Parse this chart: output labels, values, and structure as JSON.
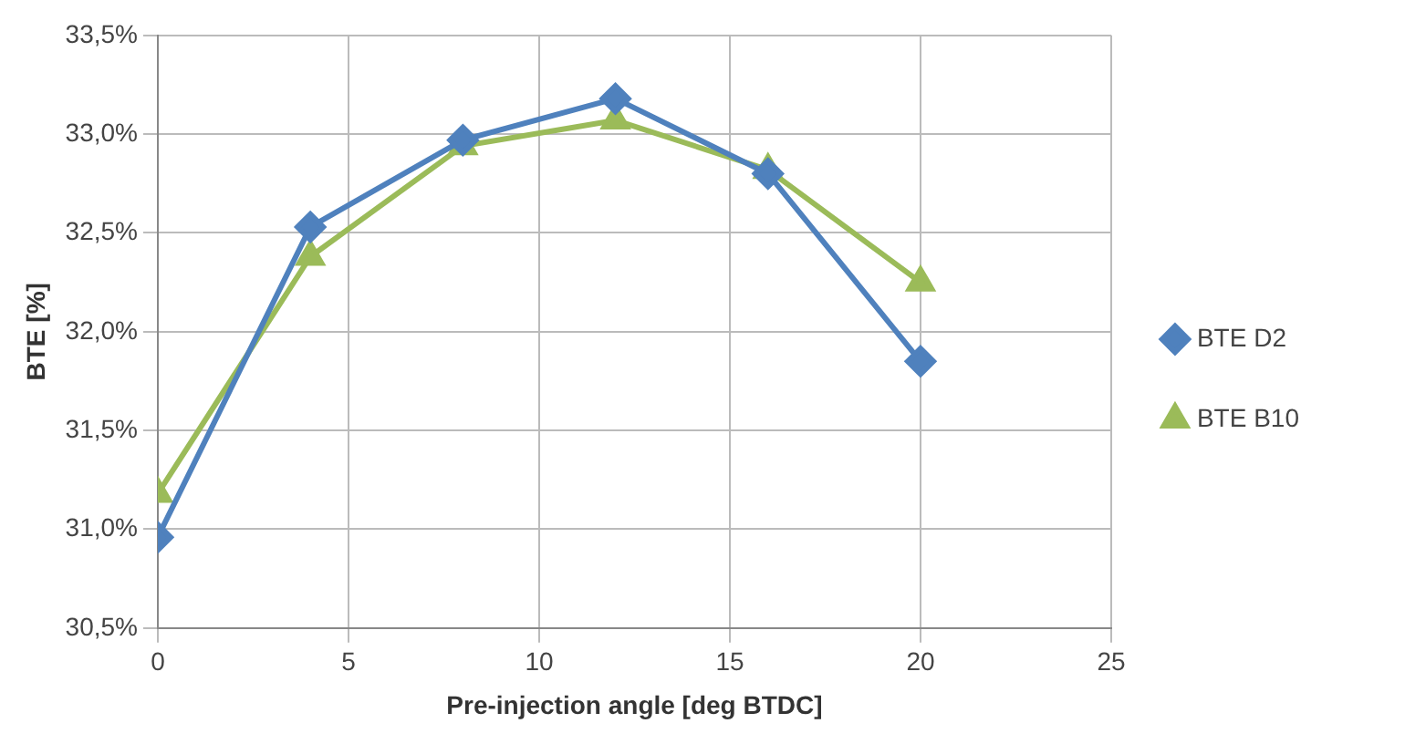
{
  "chart_data": {
    "type": "line",
    "xlabel": "Pre-injection angle [deg BTDC]",
    "ylabel": "BTE [%]",
    "x": [
      0,
      4,
      8,
      12,
      16,
      20
    ],
    "series": [
      {
        "name": "BTE B10",
        "color": "#9bbb59",
        "marker": "triangle",
        "values": [
          31.18,
          32.38,
          32.94,
          33.07,
          32.82,
          32.25
        ]
      },
      {
        "name": "BTE D2",
        "color": "#4f81bd",
        "marker": "diamond",
        "values": [
          30.96,
          32.53,
          32.97,
          33.18,
          32.8,
          31.85
        ]
      }
    ],
    "xlim": [
      0,
      25
    ],
    "xticks": [
      0,
      5,
      10,
      15,
      20,
      25
    ],
    "ylim": [
      30.5,
      33.5
    ],
    "yticks": [
      {
        "value": 30.5,
        "label": "30,5%"
      },
      {
        "value": 31,
        "label": "31,0%"
      },
      {
        "value": 31.5,
        "label": "31,5%"
      },
      {
        "value": 32,
        "label": "32,0%"
      },
      {
        "value": 32.5,
        "label": "32,5%"
      },
      {
        "value": 33,
        "label": "33,0%"
      },
      {
        "value": 33.5,
        "label": "33,5%"
      }
    ],
    "grid": true,
    "legend": "right",
    "line_style": "solid"
  }
}
